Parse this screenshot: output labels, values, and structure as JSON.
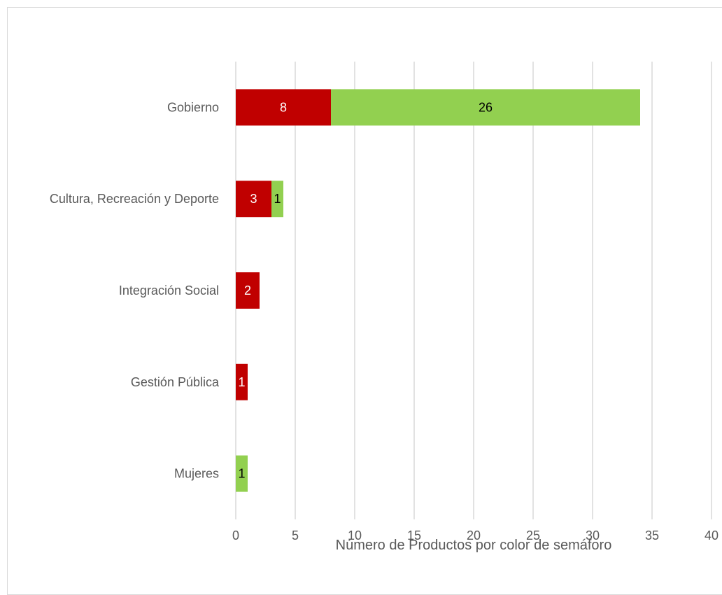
{
  "chart_data": {
    "type": "bar",
    "orientation": "horizontal",
    "stacked": true,
    "categories": [
      "Gobierno",
      "Cultura, Recreación y Deporte",
      "Integración Social",
      "Gestión Pública",
      "Mujeres"
    ],
    "series": [
      {
        "color": "#c00000",
        "label_color": "#ffffff",
        "values": [
          8,
          3,
          2,
          1,
          0
        ]
      },
      {
        "color": "#92d050",
        "label_color": "#000000",
        "values": [
          26,
          1,
          0,
          0,
          1
        ]
      }
    ],
    "xlabel": "Número de Productos por color de semáforo",
    "ylabel": "",
    "xlim": [
      0,
      40
    ],
    "xticks": [
      0,
      5,
      10,
      15,
      20,
      25,
      30,
      35,
      40
    ],
    "grid": "vertical",
    "legend": "none"
  }
}
